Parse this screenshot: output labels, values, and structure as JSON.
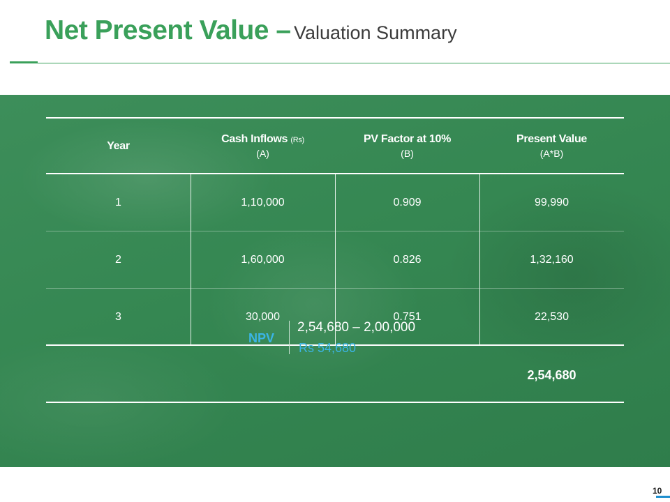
{
  "title": {
    "main": "Net Present Value –",
    "sub": "Valuation Summary"
  },
  "table": {
    "headers": [
      {
        "label": "Year",
        "small": "",
        "line2": ""
      },
      {
        "label": "Cash Inflows",
        "small": "(Rs)",
        "line2": "(A)"
      },
      {
        "label": "PV Factor at 10%",
        "small": "",
        "line2": "(B)"
      },
      {
        "label": "Present Value",
        "small": "",
        "line2": "(A*B)"
      }
    ],
    "rows": [
      {
        "year": "1",
        "cash_inflow": "1,10,000",
        "pv_factor": "0.909",
        "present_value": "99,990"
      },
      {
        "year": "2",
        "cash_inflow": "1,60,000",
        "pv_factor": "0.826",
        "present_value": "1,32,160"
      },
      {
        "year": "3",
        "cash_inflow": "30,000",
        "pv_factor": "0.751",
        "present_value": "22,530"
      }
    ],
    "total": "2,54,680"
  },
  "npv": {
    "label": "NPV",
    "formula": "2,54,680 – 2,00,000",
    "result": "Rs 54,680"
  },
  "page_number": "10",
  "colors": {
    "accent_green": "#3aa05a",
    "panel_green": "#358752",
    "npv_blue": "#3ab5e6"
  }
}
